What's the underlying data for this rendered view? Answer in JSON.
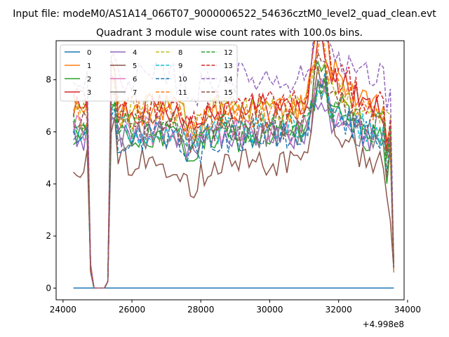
{
  "chart_data": {
    "type": "line",
    "suptitle": "Input file: modeM0/AS1A14_066T07_9000006522_54636cztM0_level2_quad_clean.evt",
    "title": "Quadrant 3 module wise count rates with 100.0s bins.",
    "xlabel": "",
    "ylabel": "",
    "x_offset_label": "+4.998e8",
    "xlim": [
      23800,
      33900
    ],
    "ylim": [
      -0.45,
      9.5
    ],
    "x_ticks": [
      24000,
      26000,
      28000,
      30000,
      32000,
      34000
    ],
    "x_tick_labels": [
      "24000",
      "26000",
      "28000",
      "30000",
      "32000",
      "34000"
    ],
    "y_ticks": [
      0,
      2,
      4,
      6,
      8
    ],
    "y_tick_labels": [
      "0",
      "2",
      "4",
      "6",
      "8"
    ],
    "legend_location": "upper-left",
    "legend_columns": 4,
    "x_start": 24300,
    "x_step": 100,
    "series": [
      {
        "name": "0",
        "color": "#1f77b4",
        "style": "solid",
        "base": 0,
        "hi": 0
      },
      {
        "name": "1",
        "color": "#ff7f0e",
        "style": "solid",
        "base": 5.7,
        "hi": 8.3
      },
      {
        "name": "2",
        "color": "#2ca02c",
        "style": "solid",
        "base": 4.8,
        "hi": 7.0
      },
      {
        "name": "3",
        "color": "#d62728",
        "style": "solid",
        "base": 6.0,
        "hi": 8.0
      },
      {
        "name": "4",
        "color": "#9467bd",
        "style": "solid",
        "base": 5.3,
        "hi": 6.5
      },
      {
        "name": "5",
        "color": "#8c564b",
        "style": "solid",
        "base": 3.7,
        "hi": 6.2
      },
      {
        "name": "6",
        "color": "#e377c2",
        "style": "solid",
        "base": 5.4,
        "hi": 6.8
      },
      {
        "name": "7",
        "color": "#7f7f7f",
        "style": "solid",
        "base": 5.2,
        "hi": 6.6
      },
      {
        "name": "8",
        "color": "#bcbd22",
        "style": "dashed",
        "base": 6.3,
        "hi": 7.6
      },
      {
        "name": "9",
        "color": "#17becf",
        "style": "dashed",
        "base": 5.4,
        "hi": 6.8
      },
      {
        "name": "10",
        "color": "#1f77b4",
        "style": "dashed",
        "base": 5.0,
        "hi": 6.7
      },
      {
        "name": "11",
        "color": "#ff7f0e",
        "style": "dashed",
        "base": 5.8,
        "hi": 7.8
      },
      {
        "name": "12",
        "color": "#2ca02c",
        "style": "dashed",
        "base": 5.6,
        "hi": 6.9
      },
      {
        "name": "13",
        "color": "#d62728",
        "style": "dashed",
        "base": 6.0,
        "hi": 8.4
      },
      {
        "name": "14",
        "color": "#9467bd",
        "style": "dashed",
        "base": 7.3,
        "hi": 9.0
      },
      {
        "name": "15",
        "color": "#8c564b",
        "style": "dashed",
        "base": 5.3,
        "hi": 7.4
      }
    ]
  }
}
